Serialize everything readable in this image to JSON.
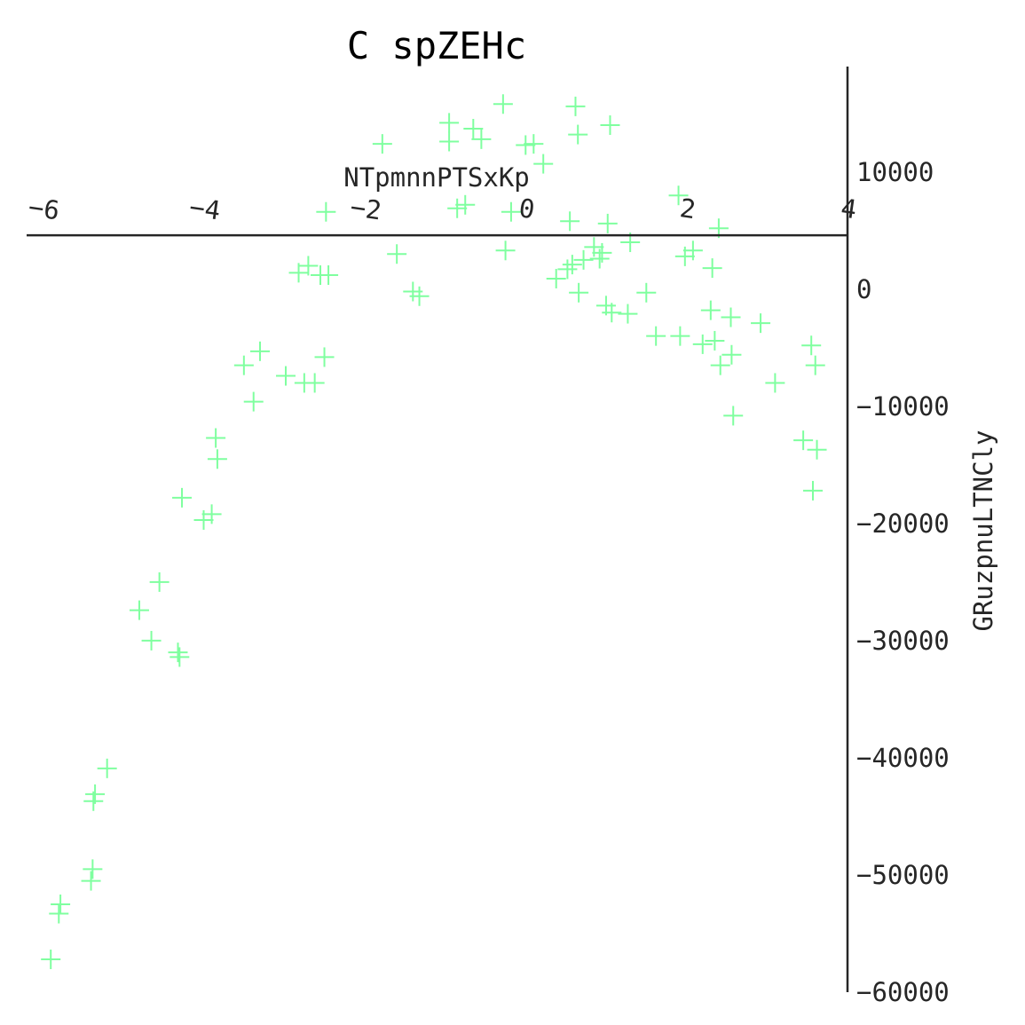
{
  "chart_data": {
    "type": "scatter",
    "title": "C spZEHc",
    "xlabel": "NTpmnnPTSxKp",
    "ylabel": "GRuzpnuLTNCly",
    "xlim": [
      -6.2,
      4.0
    ],
    "ylim": [
      -60000,
      19000
    ],
    "x_ticks": [
      "−6",
      "−4",
      "−2",
      "0",
      "2",
      "4"
    ],
    "y_ticks": [
      "10000",
      "0",
      "−10000",
      "−20000",
      "−30000",
      "−40000",
      "−50000",
      "−60000"
    ],
    "x_axis_position": "top (crosses at y = 4600)",
    "y_axis_position": "right (crosses at x = 4.0)",
    "grid": false,
    "marker": "plus",
    "colors": {
      "marker": "#7fff9f",
      "axis": "#262626",
      "title": "#000000"
    },
    "points": [
      [
        -5.9,
        -57200
      ],
      [
        -5.8,
        -53300
      ],
      [
        -5.78,
        -52500
      ],
      [
        -5.4,
        -50500
      ],
      [
        -5.38,
        -49500
      ],
      [
        -5.37,
        -43700
      ],
      [
        -5.35,
        -43100
      ],
      [
        -5.2,
        -40900
      ],
      [
        -4.8,
        -27400
      ],
      [
        -4.65,
        -30000
      ],
      [
        -4.55,
        -25000
      ],
      [
        -4.32,
        -31000
      ],
      [
        -4.3,
        -31400
      ],
      [
        -4.27,
        -17800
      ],
      [
        -4.0,
        -19700
      ],
      [
        -3.9,
        -19200
      ],
      [
        -3.85,
        -12700
      ],
      [
        -3.83,
        -14500
      ],
      [
        -3.5,
        -6500
      ],
      [
        -3.38,
        -9600
      ],
      [
        -3.3,
        -5300
      ],
      [
        -2.98,
        -7400
      ],
      [
        -2.75,
        -8000
      ],
      [
        -2.62,
        -8000
      ],
      [
        -2.5,
        -5800
      ],
      [
        -2.82,
        1400
      ],
      [
        -2.7,
        2000
      ],
      [
        -2.55,
        1200
      ],
      [
        -2.45,
        1200
      ],
      [
        -2.48,
        6600
      ],
      [
        -1.78,
        12400
      ],
      [
        -1.6,
        3000
      ],
      [
        -1.4,
        -200
      ],
      [
        -1.32,
        -600
      ],
      [
        -0.95,
        14200
      ],
      [
        -0.95,
        12600
      ],
      [
        -0.85,
        6900
      ],
      [
        -0.75,
        7200
      ],
      [
        -0.65,
        13700
      ],
      [
        -0.55,
        12800
      ],
      [
        -0.28,
        15800
      ],
      [
        -0.25,
        3300
      ],
      [
        -0.18,
        6600
      ],
      [
        0.0,
        12300
      ],
      [
        0.1,
        12400
      ],
      [
        0.22,
        10700
      ],
      [
        0.38,
        900
      ],
      [
        0.52,
        1700
      ],
      [
        0.55,
        5800
      ],
      [
        0.58,
        2100
      ],
      [
        0.62,
        15600
      ],
      [
        0.65,
        13200
      ],
      [
        0.66,
        -300
      ],
      [
        0.72,
        2500
      ],
      [
        0.85,
        3600
      ],
      [
        0.92,
        2600
      ],
      [
        0.95,
        3100
      ],
      [
        1.0,
        -1400
      ],
      [
        1.02,
        5600
      ],
      [
        1.05,
        14000
      ],
      [
        1.07,
        -2000
      ],
      [
        1.27,
        -2100
      ],
      [
        1.3,
        4000
      ],
      [
        1.5,
        -300
      ],
      [
        1.62,
        -4000
      ],
      [
        1.9,
        8000
      ],
      [
        1.92,
        -4000
      ],
      [
        1.98,
        2800
      ],
      [
        2.08,
        3300
      ],
      [
        2.2,
        -4700
      ],
      [
        2.3,
        -1800
      ],
      [
        2.32,
        1800
      ],
      [
        2.35,
        -4400
      ],
      [
        2.4,
        5200
      ],
      [
        2.42,
        -6500
      ],
      [
        2.55,
        -2400
      ],
      [
        2.56,
        -5600
      ],
      [
        2.58,
        -10800
      ],
      [
        2.92,
        -2900
      ],
      [
        3.1,
        -8000
      ],
      [
        3.45,
        -12900
      ],
      [
        3.55,
        -4800
      ],
      [
        3.57,
        -17200
      ],
      [
        3.6,
        -6500
      ],
      [
        3.62,
        -13700
      ]
    ]
  }
}
